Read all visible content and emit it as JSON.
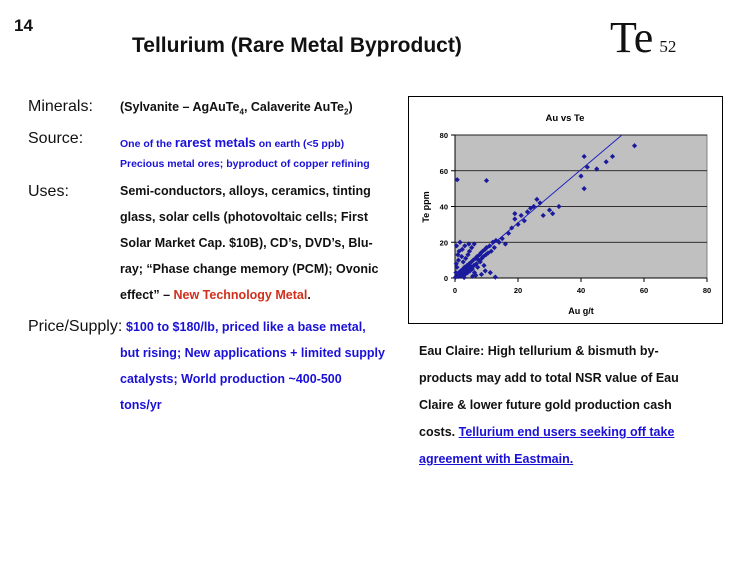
{
  "slide_number": "14",
  "title": "Tellurium (Rare Metal Byproduct)",
  "element": {
    "symbol": "Te",
    "atomic_number": "52"
  },
  "minerals": {
    "label": "Minerals:",
    "value_parts": [
      "(Sylvanite – AgAuTe",
      "4",
      ", Calaverite AuTe",
      "2",
      ")"
    ]
  },
  "source": {
    "label": "Source:",
    "line1_prefix": "One of the ",
    "line1_emphasis": "rarest metals",
    "line1_suffix": " on earth (<5 ppb)",
    "line2": "Precious metal ores; byproduct of copper refining"
  },
  "uses": {
    "label": "Uses:",
    "lines": [
      "Semi-conductors, alloys, ceramics, tinting",
      "glass, solar cells (photovoltaic cells; First",
      "Solar Market Cap. $10B), CD’s, DVD’s, Blu-",
      "ray; “Phase change memory (PCM); Ovonic"
    ],
    "last_prefix": "effect” – ",
    "last_highlight": "New Technology Metal",
    "last_suffix": "."
  },
  "price_supply": {
    "label": "Price/Supply:",
    "lines": [
      "$100 to $180/lb, priced like a base metal,",
      "but rising; New applications + limited supply",
      "catalysts; World production ~400-500",
      "tons/yr"
    ]
  },
  "eau_claire": {
    "lines": [
      "Eau Claire: High tellurium & bismuth by-",
      "products may add to total NSR value of Eau",
      "Claire & lower future gold production cash"
    ],
    "last_prefix": "costs. ",
    "link_line1": "Tellurium end users seeking off take",
    "link_line2": "agreement with Eastmain."
  },
  "chart_data": {
    "type": "scatter",
    "title": "Au vs Te",
    "xlabel": "Au g/t",
    "ylabel": "Te ppm",
    "xlim": [
      0,
      80
    ],
    "ylim": [
      0,
      80
    ],
    "x_ticks": [
      "0",
      "20",
      "40",
      "60",
      "80"
    ],
    "y_ticks": [
      "0",
      "20",
      "40",
      "60",
      "80"
    ],
    "grid": true,
    "plot_background": "#c0c0c0",
    "point_color": "#1a1a9c",
    "line_color": "#2020c0",
    "trendline": [
      [
        0,
        1
      ],
      [
        53,
        80
      ]
    ],
    "points": [
      [
        0.2,
        0.5
      ],
      [
        0.5,
        1.2
      ],
      [
        0.8,
        2
      ],
      [
        1,
        0.8
      ],
      [
        1.2,
        3
      ],
      [
        1.5,
        1.5
      ],
      [
        1.8,
        4
      ],
      [
        2,
        2.5
      ],
      [
        2.2,
        1
      ],
      [
        2.5,
        5
      ],
      [
        2.8,
        3
      ],
      [
        3,
        6
      ],
      [
        3.2,
        2
      ],
      [
        3.5,
        4.5
      ],
      [
        3.8,
        7
      ],
      [
        4,
        3
      ],
      [
        4.2,
        5.5
      ],
      [
        4.5,
        8
      ],
      [
        4.8,
        4
      ],
      [
        5,
        6.5
      ],
      [
        5.2,
        9
      ],
      [
        5.5,
        5
      ],
      [
        5.8,
        10
      ],
      [
        6,
        7
      ],
      [
        6.2,
        3
      ],
      [
        6.5,
        11
      ],
      [
        6.8,
        8
      ],
      [
        7,
        12
      ],
      [
        7.2,
        6
      ],
      [
        7.5,
        10
      ],
      [
        7.8,
        13
      ],
      [
        8,
        9
      ],
      [
        8.2,
        14
      ],
      [
        8.5,
        11
      ],
      [
        8.8,
        15
      ],
      [
        9,
        12
      ],
      [
        9.2,
        7
      ],
      [
        9.5,
        16
      ],
      [
        9.8,
        13
      ],
      [
        10,
        17
      ],
      [
        10.5,
        14
      ],
      [
        11,
        18
      ],
      [
        11.5,
        15
      ],
      [
        12,
        20
      ],
      [
        12.5,
        17
      ],
      [
        13,
        21
      ],
      [
        0.3,
        3
      ],
      [
        0.6,
        6
      ],
      [
        0.4,
        8
      ],
      [
        1.1,
        10
      ],
      [
        0.9,
        13
      ],
      [
        1.3,
        15
      ],
      [
        2.1,
        12
      ],
      [
        2.6,
        9
      ],
      [
        3.4,
        11
      ],
      [
        4.1,
        13
      ],
      [
        4.6,
        15
      ],
      [
        5.3,
        17
      ],
      [
        6.1,
        19
      ],
      [
        0.7,
        55
      ],
      [
        10,
        54.5
      ],
      [
        0.5,
        18
      ],
      [
        1.6,
        20
      ],
      [
        2.3,
        16
      ],
      [
        3.1,
        18
      ],
      [
        4.4,
        19
      ],
      [
        5.6,
        1
      ],
      [
        8.4,
        2
      ],
      [
        9.6,
        4
      ],
      [
        11.2,
        3
      ],
      [
        12.8,
        0.5
      ],
      [
        2.9,
        0.3
      ],
      [
        6.6,
        1.5
      ],
      [
        16,
        19
      ],
      [
        17,
        25
      ],
      [
        18,
        28
      ],
      [
        19,
        33
      ],
      [
        20,
        30
      ],
      [
        21,
        35
      ],
      [
        22,
        32
      ],
      [
        23,
        37
      ],
      [
        25,
        40
      ],
      [
        26,
        44
      ],
      [
        27,
        42
      ],
      [
        28,
        35
      ],
      [
        30,
        38
      ],
      [
        31,
        36
      ],
      [
        33,
        40
      ],
      [
        40,
        57
      ],
      [
        41,
        50
      ],
      [
        41,
        68
      ],
      [
        42,
        62
      ],
      [
        45,
        61
      ],
      [
        48,
        65
      ],
      [
        50,
        68
      ],
      [
        57,
        74
      ],
      [
        19,
        36
      ],
      [
        24,
        39
      ],
      [
        15,
        22
      ],
      [
        14,
        20
      ]
    ]
  }
}
